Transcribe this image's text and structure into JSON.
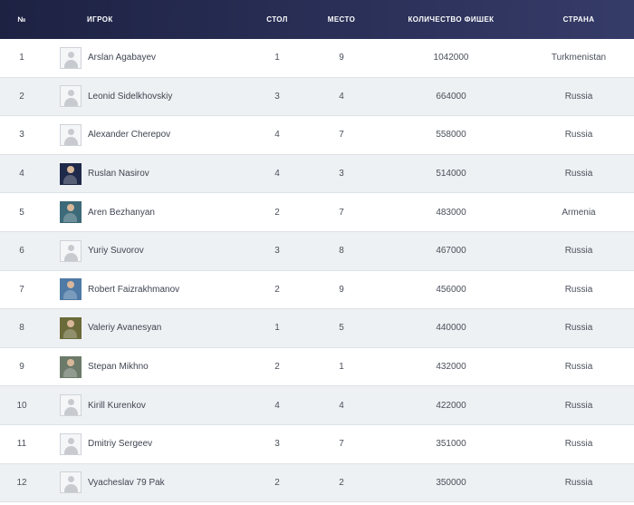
{
  "header": {
    "num": "№",
    "player": "ИГРОК",
    "table": "СТОЛ",
    "place": "МЕСТО",
    "chips": "КОЛИЧЕСТВО ФИШЕК",
    "country": "СТРАНА"
  },
  "colors": {
    "header_bg": "#2b3159",
    "row_alt": "#eef1f3",
    "text": "#4a4f5a"
  },
  "rows": [
    {
      "num": "1",
      "name": "Arslan Agabayev",
      "table": "1",
      "place": "9",
      "chips": "1042000",
      "country": "Turkmenistan",
      "avatar": "default-avatar-icon"
    },
    {
      "num": "2",
      "name": "Leonid Sidelkhovskiy",
      "table": "3",
      "place": "4",
      "chips": "664000",
      "country": "Russia",
      "avatar": "default-avatar-icon"
    },
    {
      "num": "3",
      "name": "Alexander Cherepov",
      "table": "4",
      "place": "7",
      "chips": "558000",
      "country": "Russia",
      "avatar": "default-avatar-icon"
    },
    {
      "num": "4",
      "name": "Ruslan Nasirov",
      "table": "4",
      "place": "3",
      "chips": "514000",
      "country": "Russia",
      "avatar": "photo",
      "photo_bg": "#1f2a4a"
    },
    {
      "num": "5",
      "name": "Aren Bezhanyan",
      "table": "2",
      "place": "7",
      "chips": "483000",
      "country": "Armenia",
      "avatar": "photo",
      "photo_bg": "#3d6a78"
    },
    {
      "num": "6",
      "name": "Yuriy Suvorov",
      "table": "3",
      "place": "8",
      "chips": "467000",
      "country": "Russia",
      "avatar": "default-avatar-icon"
    },
    {
      "num": "7",
      "name": "Robert Faizrakhmanov",
      "table": "2",
      "place": "9",
      "chips": "456000",
      "country": "Russia",
      "avatar": "photo",
      "photo_bg": "#4f7aa6"
    },
    {
      "num": "8",
      "name": "Valeriy Avanesyan",
      "table": "1",
      "place": "5",
      "chips": "440000",
      "country": "Russia",
      "avatar": "photo",
      "photo_bg": "#6b6a3a"
    },
    {
      "num": "9",
      "name": "Stepan Mikhno",
      "table": "2",
      "place": "1",
      "chips": "432000",
      "country": "Russia",
      "avatar": "photo",
      "photo_bg": "#6c7a6a"
    },
    {
      "num": "10",
      "name": "Kirill Kurenkov",
      "table": "4",
      "place": "4",
      "chips": "422000",
      "country": "Russia",
      "avatar": "default-avatar-icon"
    },
    {
      "num": "11",
      "name": "Dmitriy Sergeev",
      "table": "3",
      "place": "7",
      "chips": "351000",
      "country": "Russia",
      "avatar": "default-avatar-icon"
    },
    {
      "num": "12",
      "name": "Vyacheslav 79 Pak",
      "table": "2",
      "place": "2",
      "chips": "350000",
      "country": "Russia",
      "avatar": "default-avatar-icon"
    }
  ]
}
